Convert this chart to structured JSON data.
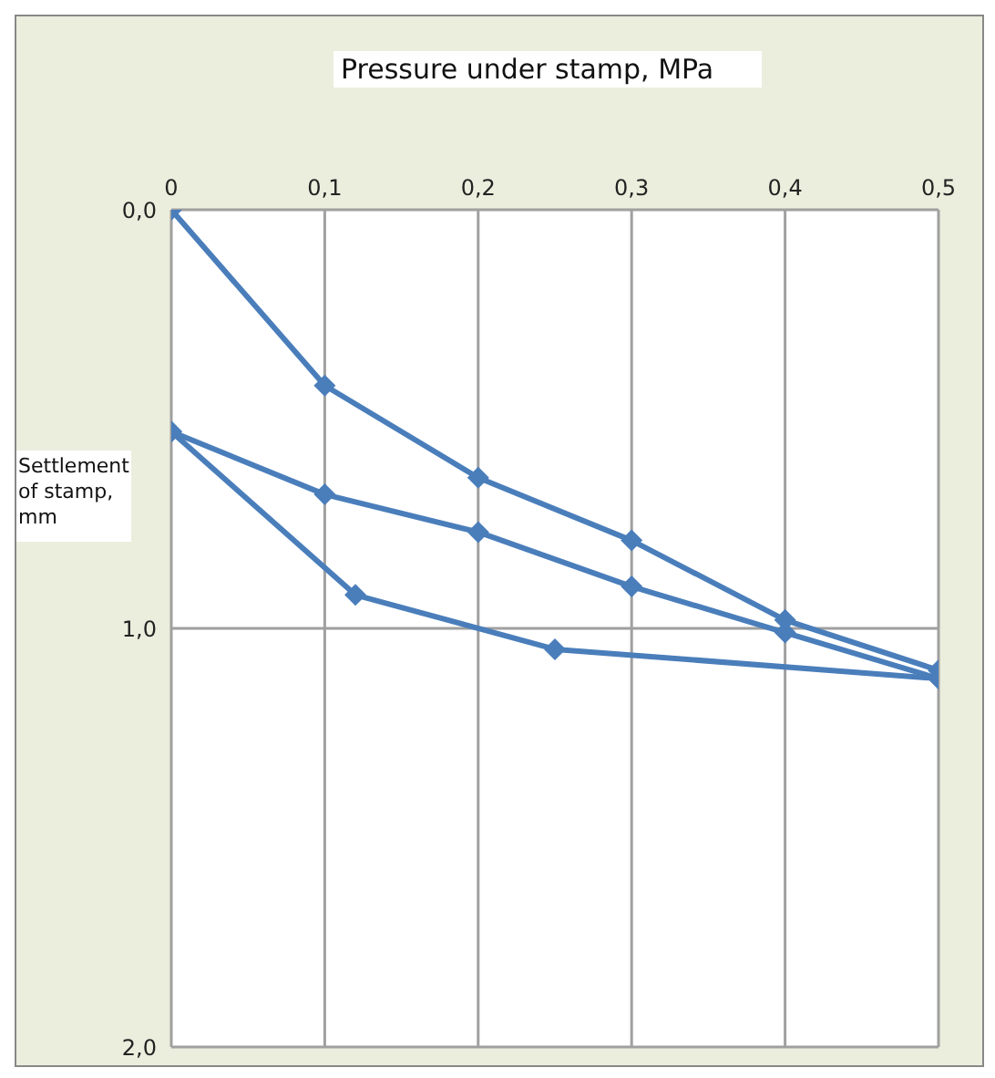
{
  "chart_data": {
    "type": "line",
    "xlabel": "Pressure under stamp, MPa",
    "ylabel": "Settlement of stamp, mm",
    "series": [
      {
        "color": "#4a7ebb",
        "x": [
          0,
          0.1,
          0.2,
          0.3,
          0.4,
          0.5
        ],
        "values": [
          0,
          0.42,
          0.64,
          0.79,
          0.98,
          1.1
        ]
      },
      {
        "color": "#4a7ebb",
        "x": [
          0,
          0.1,
          0.2,
          0.3,
          0.4,
          0.5
        ],
        "values": [
          0.53,
          0.68,
          0.77,
          0.9,
          1.01,
          1.12
        ]
      },
      {
        "color": "#4a7ebb",
        "x": [
          0,
          0.12,
          0.25,
          0.5
        ],
        "values": [
          0.53,
          0.92,
          1.05,
          1.12
        ]
      }
    ],
    "xlim": [
      0,
      0.5
    ],
    "xticks": [
      0,
      {
        "value": 0.1,
        "label": "0,1"
      },
      {
        "value": 0.2,
        "label": "0,2"
      },
      {
        "value": 0.3,
        "label": "0,3"
      },
      {
        "value": 0.4,
        "label": "0,4"
      },
      {
        "value": 0.5,
        "label": "0,5"
      }
    ],
    "ylim": [
      2,
      0
    ],
    "yticks": [
      {
        "value": 0,
        "label": "0,0"
      },
      {
        "value": 1,
        "label": "1,0"
      },
      {
        "value": 2,
        "label": "2,0"
      }
    ],
    "grid": true,
    "marker": "diamond",
    "line_style": "solid"
  }
}
